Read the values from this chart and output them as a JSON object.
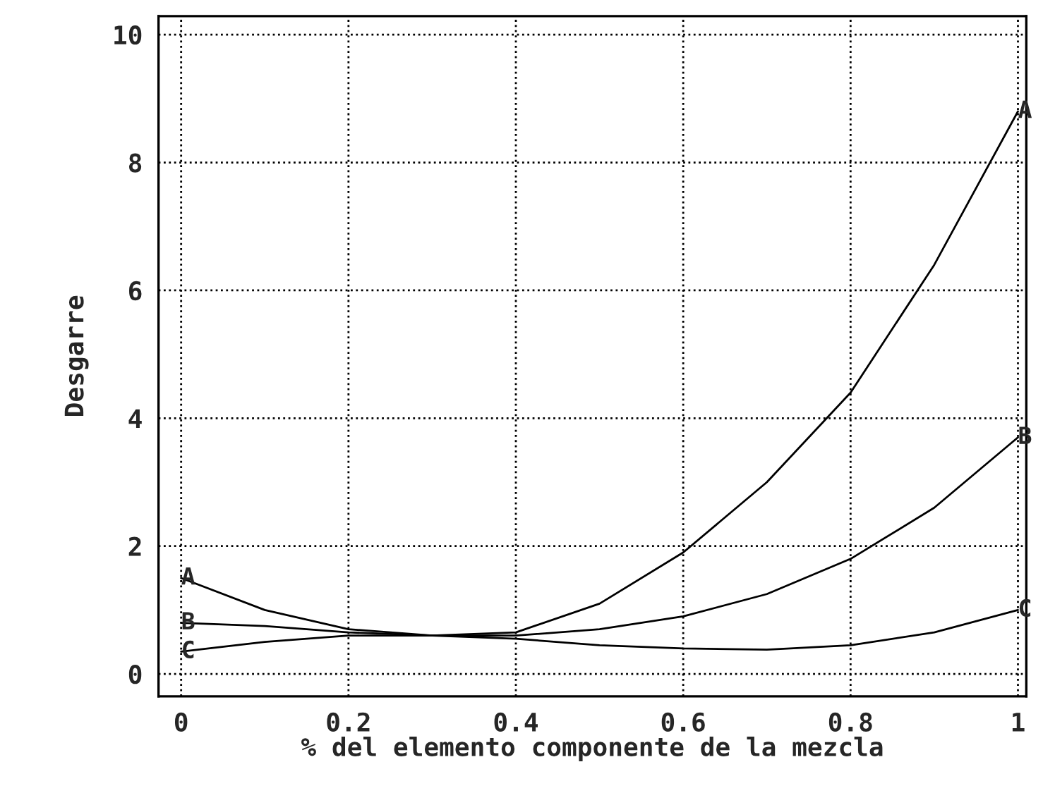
{
  "chart_data": {
    "type": "line",
    "xlabel": "% del elemento componente de la mezcla",
    "ylabel": "Desgarre",
    "x": [
      0,
      0.1,
      0.2,
      0.3,
      0.4,
      0.5,
      0.6,
      0.7,
      0.8,
      0.9,
      1
    ],
    "series": [
      {
        "name": "A",
        "color": "#000000",
        "values": [
          1.5,
          1.0,
          0.7,
          0.6,
          0.65,
          1.1,
          1.9,
          3.0,
          4.4,
          6.4,
          8.8
        ]
      },
      {
        "name": "B",
        "color": "#000000",
        "values": [
          0.8,
          0.75,
          0.65,
          0.6,
          0.6,
          0.7,
          0.9,
          1.25,
          1.8,
          2.6,
          3.7
        ]
      },
      {
        "name": "C",
        "color": "#000000",
        "values": [
          0.35,
          0.5,
          0.6,
          0.6,
          0.55,
          0.45,
          0.4,
          0.38,
          0.45,
          0.65,
          1.0
        ]
      }
    ],
    "xlim": [
      -0.027,
      1.01
    ],
    "ylim": [
      -0.35,
      10.29
    ],
    "xticks": [
      0,
      0.2,
      0.4,
      0.6,
      0.8,
      1
    ],
    "yticks": [
      0,
      2,
      4,
      6,
      8,
      10
    ],
    "grid": true,
    "legend": false,
    "marker": "none",
    "line_style": "solid"
  }
}
